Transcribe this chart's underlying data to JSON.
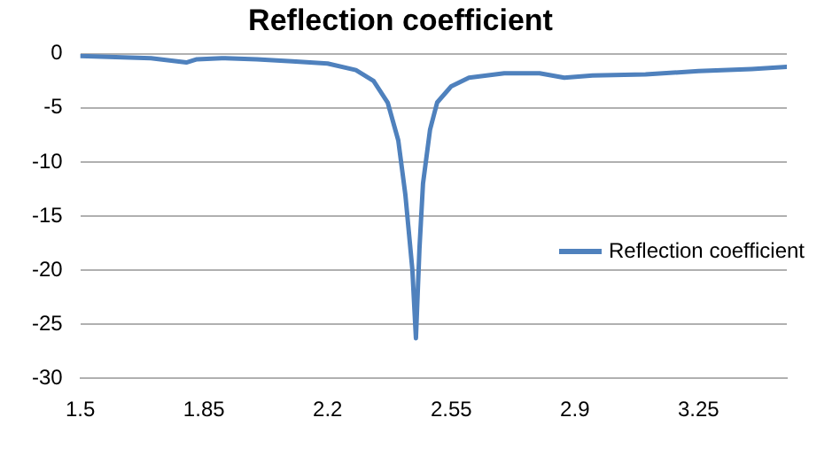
{
  "chart_data": {
    "type": "line",
    "title": "Reflection coefficient",
    "x": [
      1.5,
      1.6,
      1.7,
      1.8,
      1.83,
      1.9,
      2.0,
      2.1,
      2.2,
      2.28,
      2.33,
      2.37,
      2.4,
      2.42,
      2.44,
      2.45,
      2.46,
      2.47,
      2.49,
      2.51,
      2.55,
      2.6,
      2.7,
      2.8,
      2.87,
      2.95,
      3.1,
      3.25,
      3.4,
      3.5
    ],
    "series": [
      {
        "name": "Reflection coefficient",
        "color": "#4f81bd",
        "values": [
          -0.2,
          -0.3,
          -0.4,
          -0.8,
          -0.5,
          -0.4,
          -0.5,
          -0.7,
          -0.9,
          -1.5,
          -2.5,
          -4.5,
          -8,
          -13,
          -20,
          -26.3,
          -18,
          -12,
          -7,
          -4.5,
          -3,
          -2.2,
          -1.8,
          -1.8,
          -2.2,
          -2.0,
          -1.9,
          -1.6,
          -1.4,
          -1.2
        ]
      }
    ],
    "xlim": [
      1.5,
      3.5
    ],
    "xticks": [
      1.5,
      1.85,
      2.2,
      2.55,
      2.9,
      3.25
    ],
    "ylim": [
      -30,
      0
    ],
    "yticks": [
      -30,
      -25,
      -20,
      -15,
      -10,
      -5,
      0
    ],
    "grid": "y",
    "legend": "right",
    "marker": "none",
    "line_style": "solid"
  }
}
